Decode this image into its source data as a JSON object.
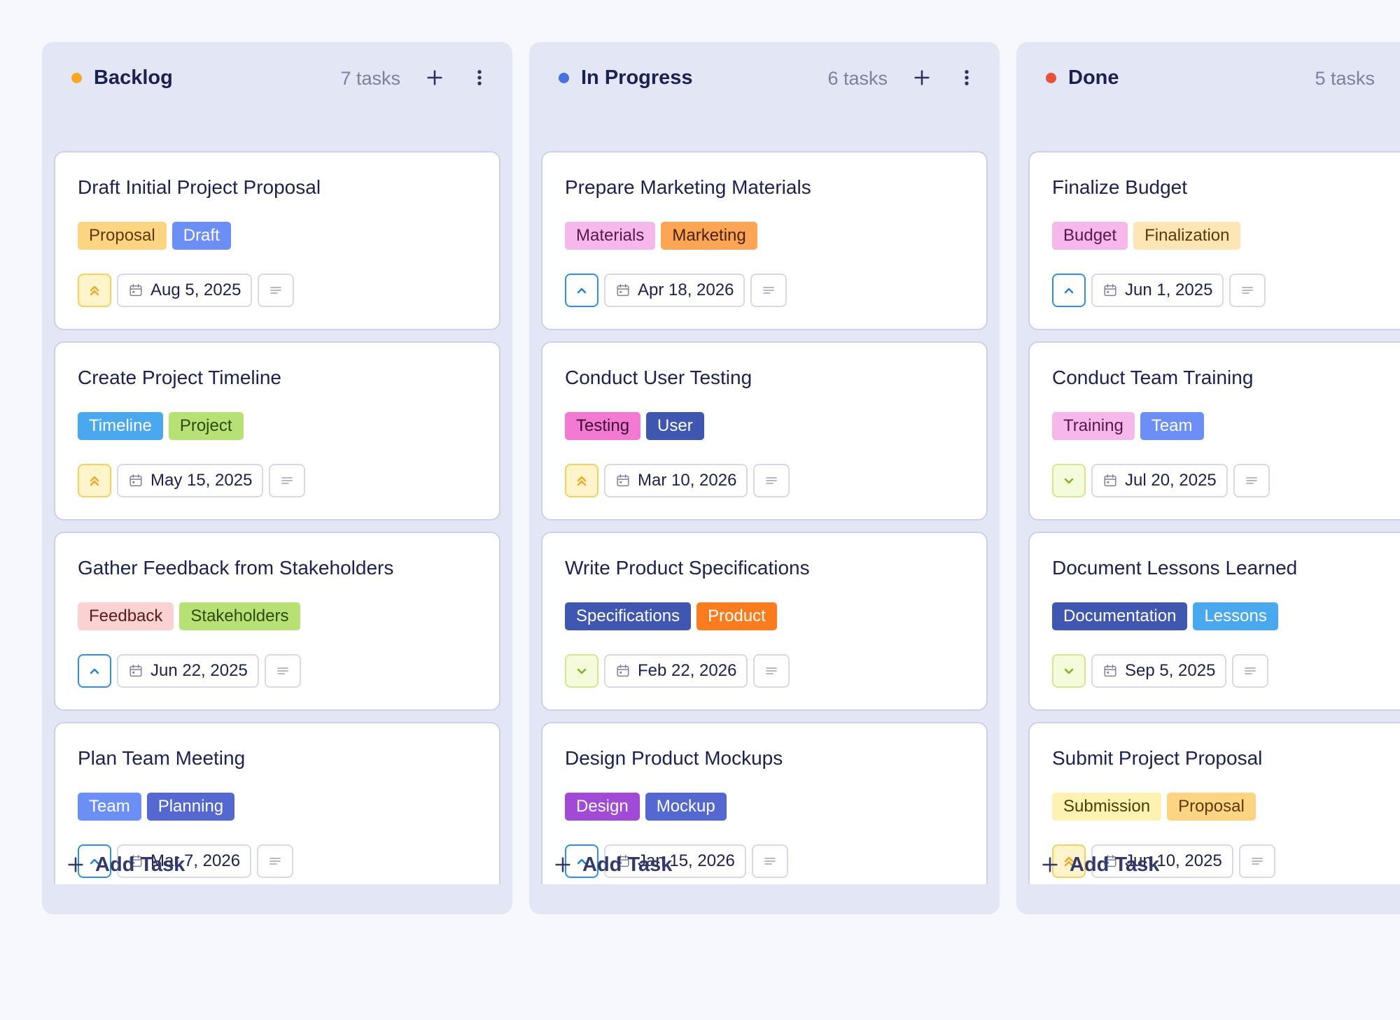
{
  "add_task_label": "Add Task",
  "columns": [
    {
      "title": "Backlog",
      "count": "7 tasks",
      "dot_color": "#f9a825",
      "cards": [
        {
          "title": "Draft Initial Project Proposal",
          "priority": "high",
          "tags": [
            {
              "label": "Proposal",
              "bg": "#fdd582",
              "fg": "#5a3a00"
            },
            {
              "label": "Draft",
              "bg": "#6b8ef7",
              "fg": "#ffffff"
            }
          ],
          "date": "Aug 5, 2025"
        },
        {
          "title": "Create Project Timeline",
          "priority": "high",
          "tags": [
            {
              "label": "Timeline",
              "bg": "#4aa8ef",
              "fg": "#ffffff"
            },
            {
              "label": "Project",
              "bg": "#b7e174",
              "fg": "#2d4a05"
            }
          ],
          "date": "May 15, 2025"
        },
        {
          "title": "Gather Feedback from Stakeholders",
          "priority": "medium",
          "tags": [
            {
              "label": "Feedback",
              "bg": "#fbd2d2",
              "fg": "#5a1b1b"
            },
            {
              "label": "Stakeholders",
              "bg": "#b7e174",
              "fg": "#2d4a05"
            }
          ],
          "date": "Jun 22, 2025"
        },
        {
          "title": "Plan Team Meeting",
          "priority": "medium",
          "tags": [
            {
              "label": "Team",
              "bg": "#6b8ef7",
              "fg": "#ffffff"
            },
            {
              "label": "Planning",
              "bg": "#5468cf",
              "fg": "#ffffff"
            }
          ],
          "date": "Mar 7, 2026"
        }
      ]
    },
    {
      "title": "In Progress",
      "count": "6 tasks",
      "dot_color": "#4a6fe0",
      "cards": [
        {
          "title": "Prepare Marketing Materials",
          "priority": "medium",
          "tags": [
            {
              "label": "Materials",
              "bg": "#f6b8ea",
              "fg": "#5a1650"
            },
            {
              "label": "Marketing",
              "bg": "#fca555",
              "fg": "#4a2200"
            }
          ],
          "date": "Apr 18, 2026"
        },
        {
          "title": "Conduct User Testing",
          "priority": "high",
          "tags": [
            {
              "label": "Testing",
              "bg": "#f27ad2",
              "fg": "#3d0a33"
            },
            {
              "label": "User",
              "bg": "#3f57b0",
              "fg": "#ffffff"
            }
          ],
          "date": "Mar 10, 2026"
        },
        {
          "title": "Write Product Specifications",
          "priority": "low",
          "tags": [
            {
              "label": "Specifications",
              "bg": "#3f57b0",
              "fg": "#ffffff"
            },
            {
              "label": "Product",
              "bg": "#fb7b1f",
              "fg": "#ffffff"
            }
          ],
          "date": "Feb 22, 2026"
        },
        {
          "title": "Design Product Mockups",
          "priority": "medium",
          "tags": [
            {
              "label": "Design",
              "bg": "#a04ad5",
              "fg": "#ffffff"
            },
            {
              "label": "Mockup",
              "bg": "#5468cf",
              "fg": "#ffffff"
            }
          ],
          "date": "Jan 15, 2026"
        }
      ]
    },
    {
      "title": "Done",
      "count": "5 tasks",
      "dot_color": "#e8503a",
      "cards": [
        {
          "title": "Finalize Budget",
          "priority": "medium",
          "tags": [
            {
              "label": "Budget",
              "bg": "#f6b8ea",
              "fg": "#5a1650"
            },
            {
              "label": "Finalization",
              "bg": "#fde5b5",
              "fg": "#5a3a00"
            }
          ],
          "date": "Jun 1, 2025"
        },
        {
          "title": "Conduct Team Training",
          "priority": "low",
          "tags": [
            {
              "label": "Training",
              "bg": "#f6b8ea",
              "fg": "#5a1650"
            },
            {
              "label": "Team",
              "bg": "#6b8ef7",
              "fg": "#ffffff"
            }
          ],
          "date": "Jul 20, 2025"
        },
        {
          "title": "Document Lessons Learned",
          "priority": "low",
          "tags": [
            {
              "label": "Documentation",
              "bg": "#3f57b0",
              "fg": "#ffffff"
            },
            {
              "label": "Lessons",
              "bg": "#4aa8ef",
              "fg": "#ffffff"
            }
          ],
          "date": "Sep 5, 2025"
        },
        {
          "title": "Submit Project Proposal",
          "priority": "high",
          "tags": [
            {
              "label": "Submission",
              "bg": "#fdf2b2",
              "fg": "#4a3d00"
            },
            {
              "label": "Proposal",
              "bg": "#fdd582",
              "fg": "#5a3a00"
            }
          ],
          "date": "Jun 10, 2025"
        }
      ]
    }
  ],
  "priority_styles": {
    "high": {
      "icon": "chevrons-up-icon",
      "bg": "#fff4cc",
      "border": "#f9cf5e",
      "color": "#f5a623"
    },
    "medium": {
      "icon": "chevron-up-icon",
      "bg": "#ffffff",
      "border": "#2f8fe6",
      "color": "#1f7fd8"
    },
    "low": {
      "icon": "chevron-down-icon",
      "bg": "#f4fbdc",
      "border": "#d2ea8e",
      "color": "#7cb518"
    }
  }
}
